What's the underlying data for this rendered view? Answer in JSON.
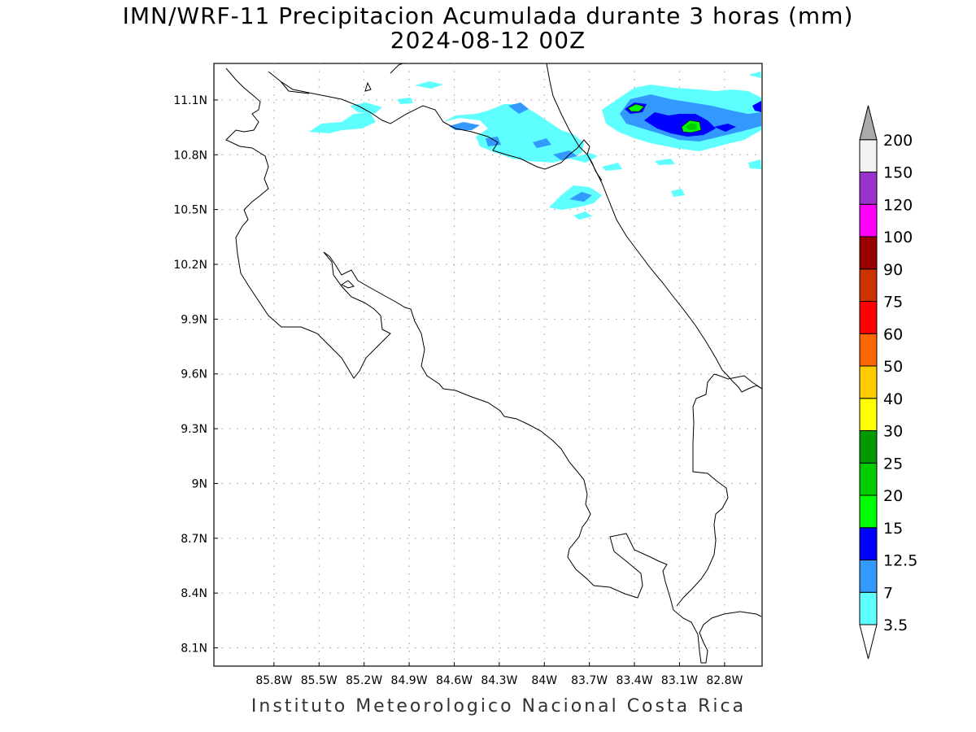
{
  "title": {
    "line1": "IMN/WRF-11 Precipitacion Acumulada durante 3 horas (mm)",
    "line2": "2024-08-12 00Z"
  },
  "credit": "Instituto Meteorologico Nacional Costa Rica",
  "map": {
    "lon_range": [
      -86.2,
      -82.55
    ],
    "lat_range": [
      8.0,
      11.3
    ],
    "lon_ticks": [
      {
        "value": -85.8,
        "label": "85.8W"
      },
      {
        "value": -85.5,
        "label": "85.5W"
      },
      {
        "value": -85.2,
        "label": "85.2W"
      },
      {
        "value": -84.9,
        "label": "84.9W"
      },
      {
        "value": -84.6,
        "label": "84.6W"
      },
      {
        "value": -84.3,
        "label": "84.3W"
      },
      {
        "value": -84.0,
        "label": "84W"
      },
      {
        "value": -83.7,
        "label": "83.7W"
      },
      {
        "value": -83.4,
        "label": "83.4W"
      },
      {
        "value": -83.1,
        "label": "83.1W"
      },
      {
        "value": -82.8,
        "label": "82.8W"
      }
    ],
    "lat_ticks": [
      {
        "value": 11.1,
        "label": "11.1N"
      },
      {
        "value": 10.8,
        "label": "10.8N"
      },
      {
        "value": 10.5,
        "label": "10.5N"
      },
      {
        "value": 10.2,
        "label": "10.2N"
      },
      {
        "value": 9.9,
        "label": "9.9N"
      },
      {
        "value": 9.6,
        "label": "9.6N"
      },
      {
        "value": 9.3,
        "label": "9.3N"
      },
      {
        "value": 9.0,
        "label": "9N"
      },
      {
        "value": 8.7,
        "label": "8.7N"
      },
      {
        "value": 8.4,
        "label": "8.4N"
      },
      {
        "value": 8.1,
        "label": "8.1N"
      }
    ],
    "grid": true
  },
  "colorbar": {
    "unit": "mm",
    "levels": [
      {
        "label": "3.5",
        "color": "#60ffff"
      },
      {
        "label": "7",
        "color": "#3399ff"
      },
      {
        "label": "12.5",
        "color": "#0000ff"
      },
      {
        "label": "15",
        "color": "#00ff00"
      },
      {
        "label": "20",
        "color": "#00cc00"
      },
      {
        "label": "25",
        "color": "#009900"
      },
      {
        "label": "30",
        "color": "#ffff00"
      },
      {
        "label": "40",
        "color": "#ffcc00"
      },
      {
        "label": "50",
        "color": "#ff6600"
      },
      {
        "label": "60",
        "color": "#ff0000"
      },
      {
        "label": "75",
        "color": "#cc3300"
      },
      {
        "label": "90",
        "color": "#990000"
      },
      {
        "label": "100",
        "color": "#ff00ff"
      },
      {
        "label": "120",
        "color": "#9933cc"
      },
      {
        "label": "150",
        "color": "#f2f2f2"
      },
      {
        "label": "200",
        "color": "#aaaaaa"
      }
    ]
  }
}
